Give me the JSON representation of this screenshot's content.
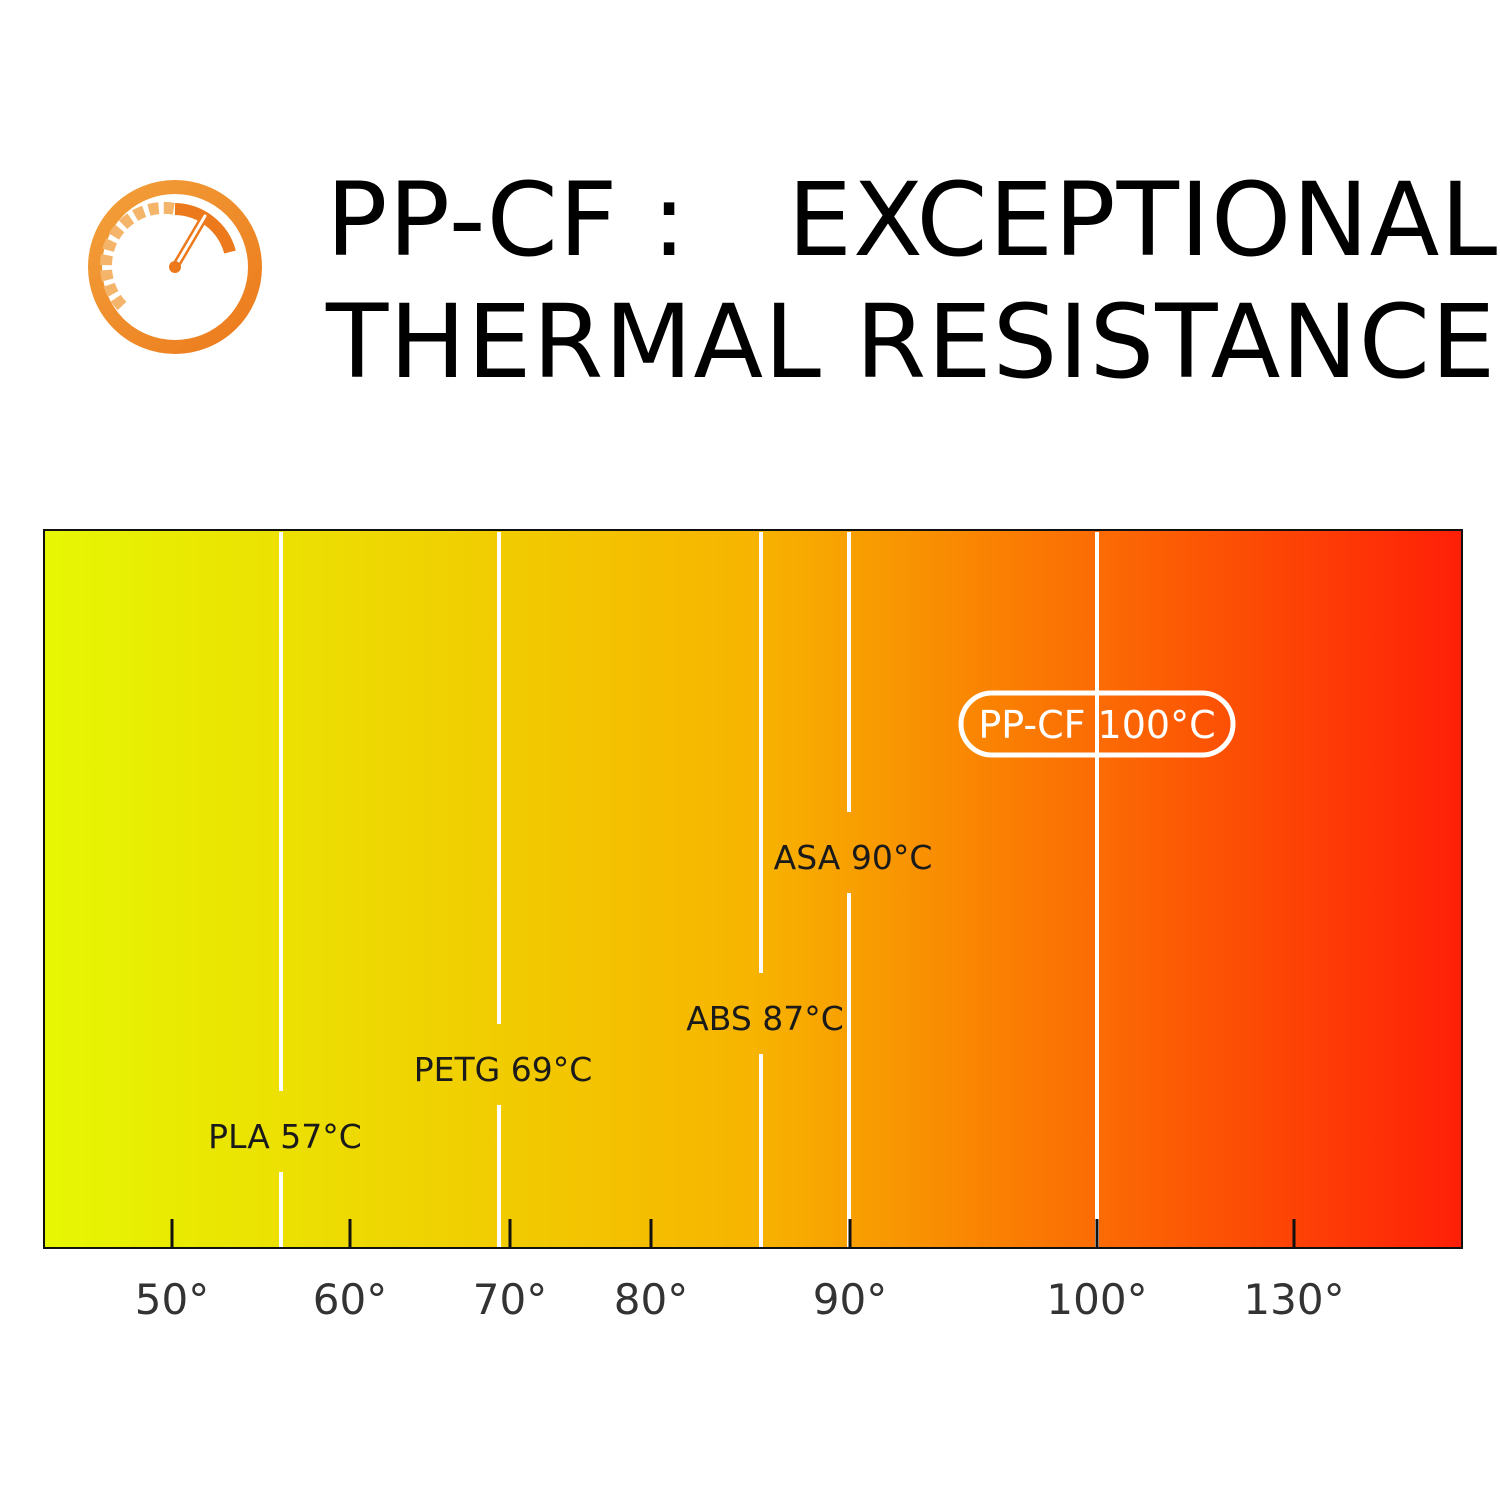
{
  "header": {
    "icon": "gauge-icon",
    "title_line1": "PP-CF :   EXCEPTIONAL",
    "title_line2": "THERMAL RESISTANCE"
  },
  "colors": {
    "gradient_start": "#e6f703",
    "gradient_mid": "#f7b400",
    "gradient_end": "#ff1f07",
    "gauge": "#f08a24",
    "text": "#1a1a1a"
  },
  "chart_data": {
    "type": "bar",
    "title": "",
    "xlabel": "",
    "ylabel": "",
    "ticks": [
      {
        "value": 50,
        "label": "50°"
      },
      {
        "value": 60,
        "label": "60°"
      },
      {
        "value": 70,
        "label": "70°"
      },
      {
        "value": 80,
        "label": "80°"
      },
      {
        "value": 90,
        "label": "90°"
      },
      {
        "value": 100,
        "label": "100°"
      },
      {
        "value": 130,
        "label": "130°"
      }
    ],
    "series": [
      {
        "name": "PLA",
        "value": 57,
        "label": "PLA 57°C"
      },
      {
        "name": "PETG",
        "value": 69,
        "label": "PETG 69°C"
      },
      {
        "name": "ABS",
        "value": 87,
        "label": "ABS 87°C"
      },
      {
        "name": "ASA",
        "value": 90,
        "label": "ASA 90°C"
      },
      {
        "name": "PP-CF",
        "value": 100,
        "label": "PP-CF 100°C",
        "highlight": true
      }
    ],
    "grid": false,
    "legend": "none"
  }
}
